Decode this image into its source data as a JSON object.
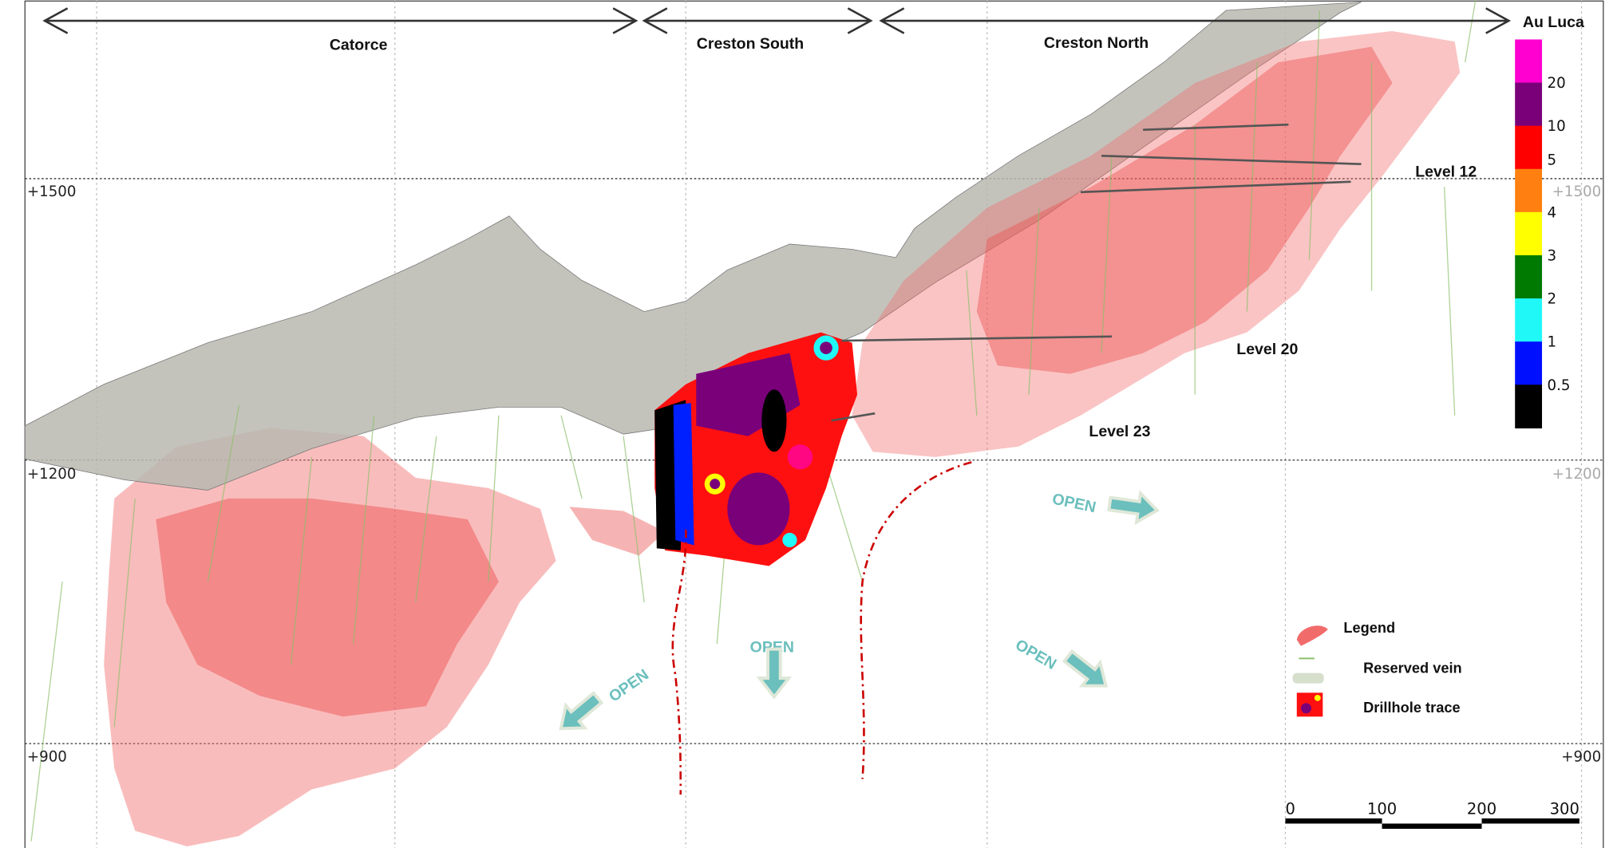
{
  "zones": [
    {
      "label": "Catorce"
    },
    {
      "label": "Creston South"
    },
    {
      "label": "Creston North"
    }
  ],
  "colorbar": {
    "title": "Au Luca",
    "ticks": [
      "20",
      "10",
      "5",
      "4",
      "3",
      "2",
      "1",
      "0.5"
    ],
    "colors": [
      "#ff00d0",
      "#7a007a",
      "#ff0000",
      "#ff8010",
      "#ffff00",
      "#007a00",
      "#20f8f8",
      "#0010ff",
      "#000000"
    ]
  },
  "levels": [
    "Level 12",
    "Level 20",
    "Level 23"
  ],
  "elevations": [
    "+1500",
    "+1200",
    "+900"
  ],
  "open_label": "OPEN",
  "legend": {
    "title": "Legend",
    "items": [
      "Reserved vein",
      "Drillhole trace"
    ]
  },
  "scale_bar": {
    "ticks": [
      "0",
      "100",
      "200",
      "300"
    ]
  },
  "colors": {
    "orebody": "#f26b6b",
    "terrain": "#b8b8b0",
    "open_arrow": "#6bbfbd",
    "drill_line": "#8cc06a",
    "boundary": "#cc0000"
  }
}
